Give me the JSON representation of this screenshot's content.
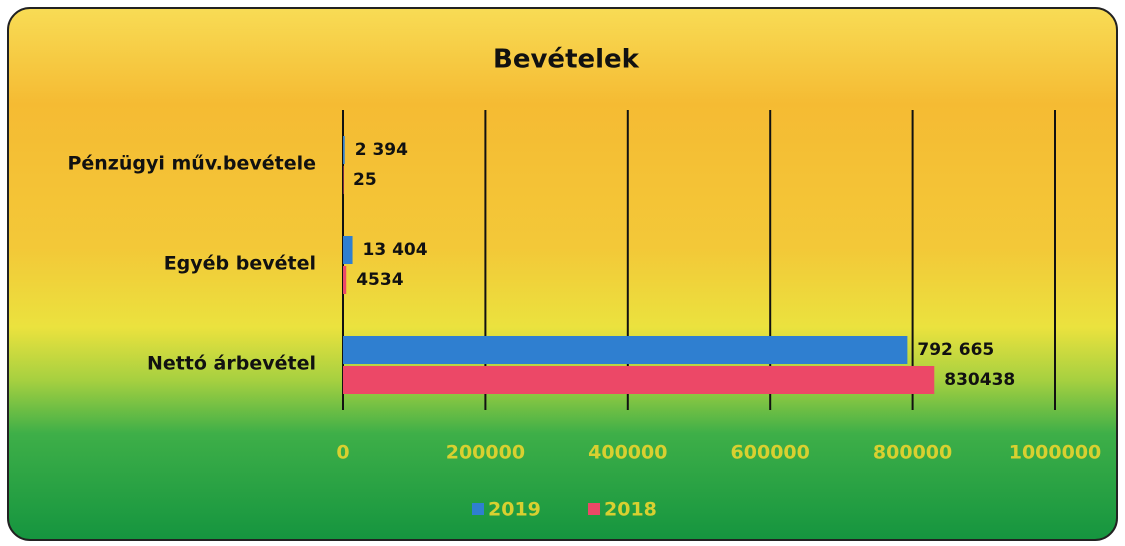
{
  "chart_data": {
    "type": "barh",
    "title": "Bevételek",
    "categories": [
      "Pénzügyi műv.bevétele",
      "Egyéb bevétel",
      "Nettó árbevétel"
    ],
    "series": [
      {
        "name": "2019",
        "color": "#2f7fd0",
        "values": [
          2394,
          13404,
          792665
        ],
        "value_labels": [
          "2 394",
          "13 404",
          "792 665"
        ]
      },
      {
        "name": "2018",
        "color": "#ec4867",
        "values": [
          25,
          4534,
          830438
        ]
      }
    ],
    "xlim": [
      0,
      1000000
    ],
    "xticks": [
      0,
      200000,
      400000,
      600000,
      800000,
      1000000
    ],
    "grid": true,
    "legend": "bottom"
  }
}
